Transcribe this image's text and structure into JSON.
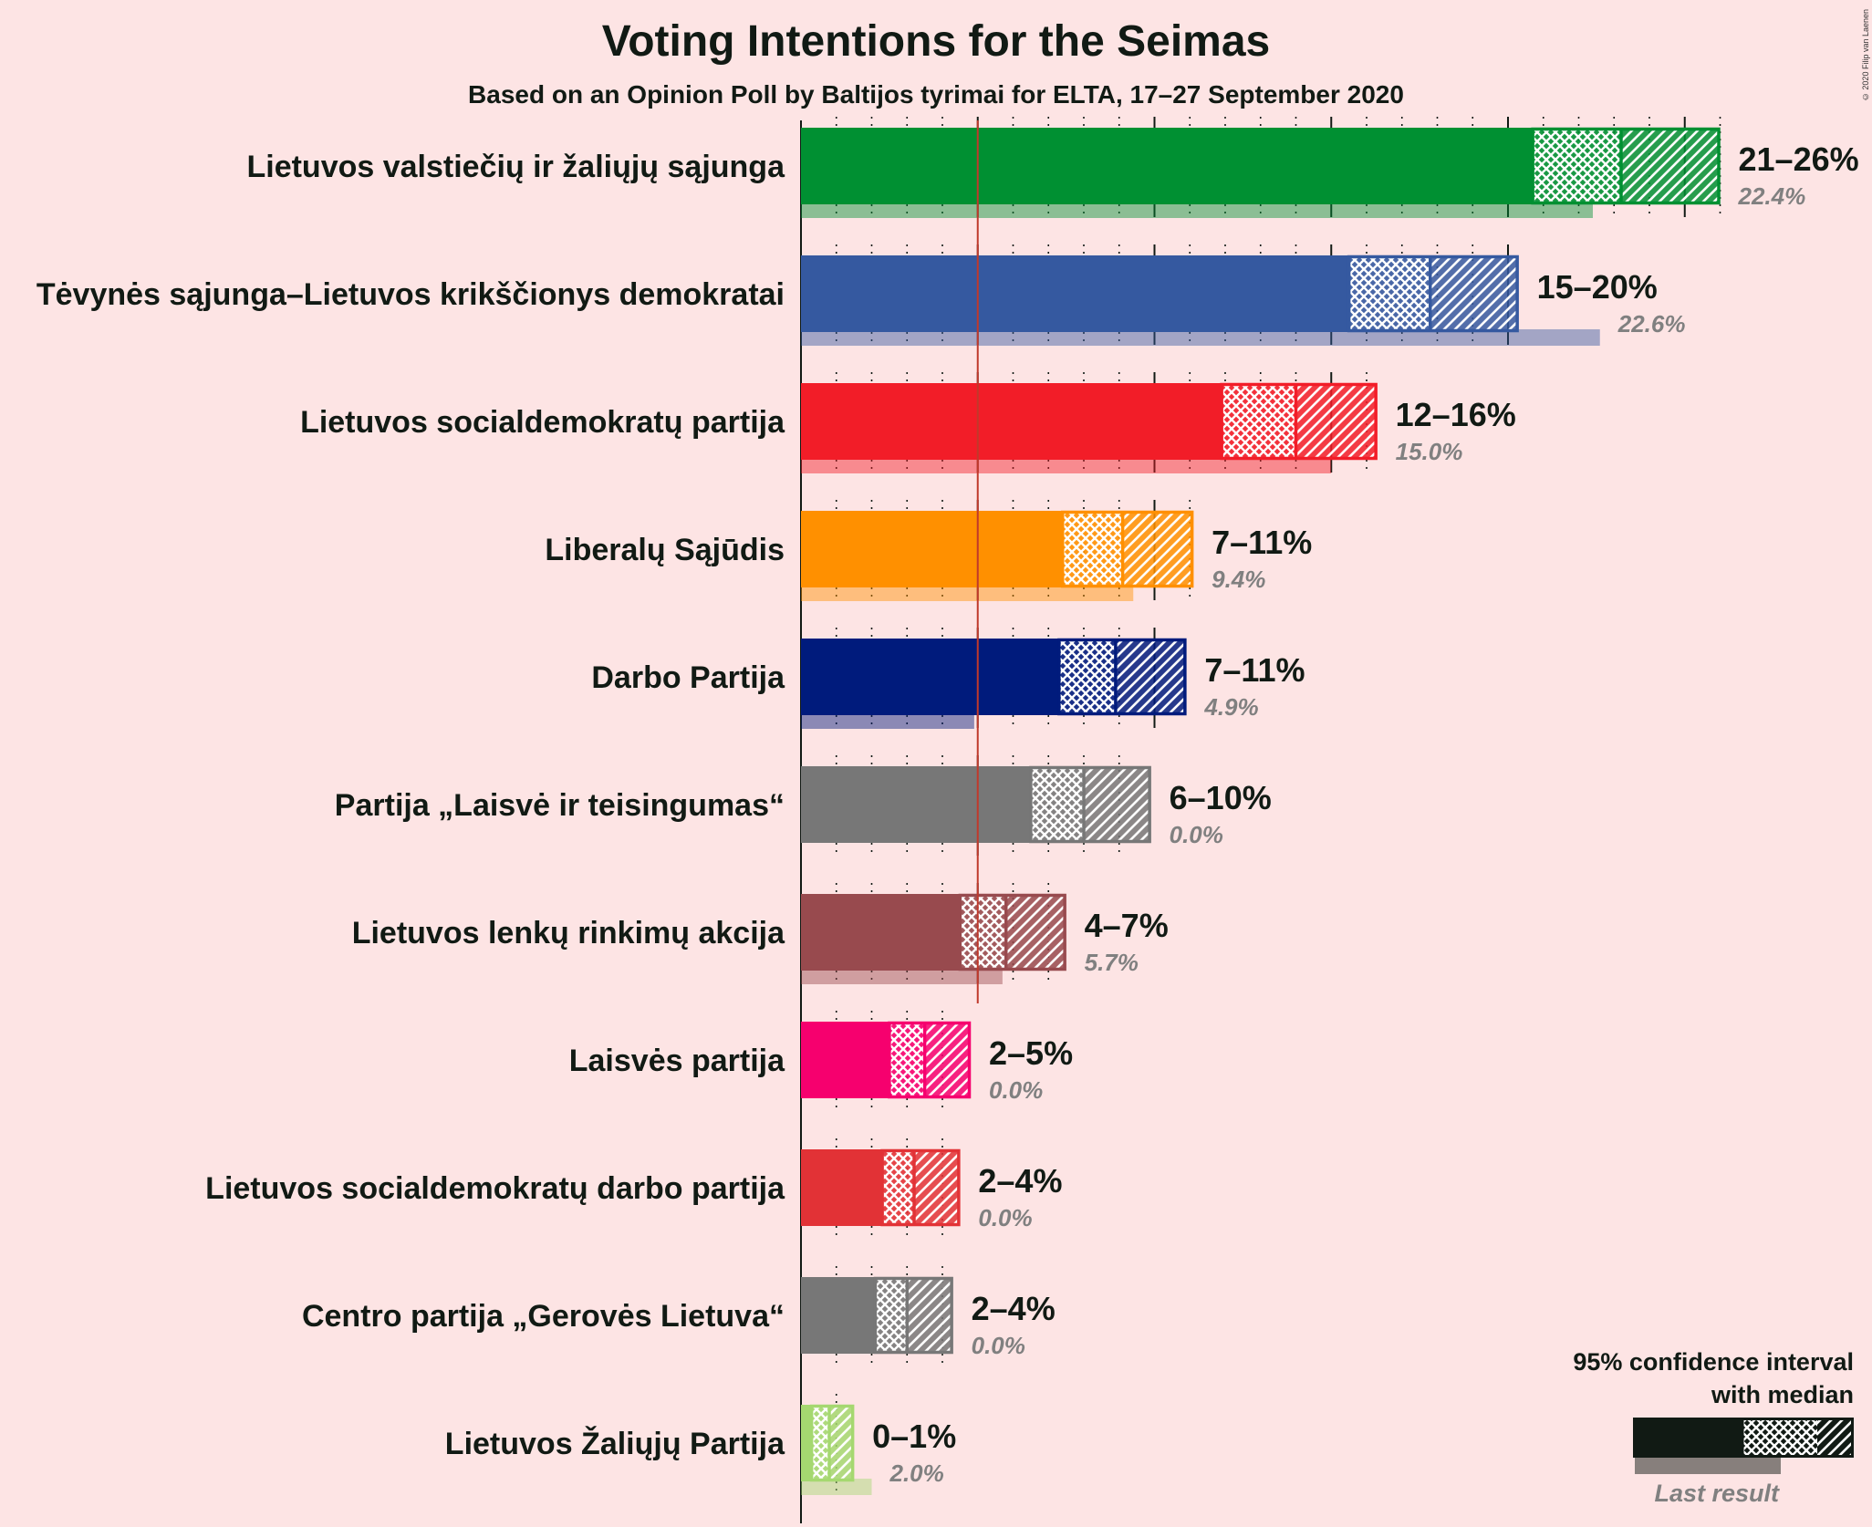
{
  "title": "Voting Intentions for the Seimas",
  "subtitle": "Based on an Opinion Poll by Baltijos tyrimai for ELTA, 17–27 September 2020",
  "copyright": "© 2020 Filip van Laenen",
  "legend": {
    "ci_label_line1": "95% confidence interval",
    "ci_label_line2": "with median",
    "last_result_label": "Last result"
  },
  "chart_data": {
    "type": "bar",
    "orientation": "horizontal",
    "xlim": [
      0,
      26
    ],
    "threshold": 5,
    "grid": "dotted every 1%, solid every 5%",
    "series": [
      {
        "party": "Lietuvos valstiečių ir žaliųjų sąjunga",
        "color": "#009032",
        "lo": 20.7,
        "median": 23.2,
        "hi": 26.0,
        "range_label": "21–26%",
        "last": 22.4,
        "last_label": "22.4%"
      },
      {
        "party": "Tėvynės sąjunga–Lietuvos krikščionys demokratai",
        "color": "#3559a0",
        "lo": 15.5,
        "median": 17.8,
        "hi": 20.3,
        "range_label": "15–20%",
        "last": 22.6,
        "last_label": "22.6%"
      },
      {
        "party": "Lietuvos socialdemokratų partija",
        "color": "#f21d28",
        "lo": 11.9,
        "median": 14.0,
        "hi": 16.3,
        "range_label": "12–16%",
        "last": 15.0,
        "last_label": "15.0%"
      },
      {
        "party": "Liberalų Sąjūdis",
        "color": "#ff9000",
        "lo": 7.4,
        "median": 9.1,
        "hi": 11.1,
        "range_label": "7–11%",
        "last": 9.4,
        "last_label": "9.4%"
      },
      {
        "party": "Darbo Partija",
        "color": "#001b7c",
        "lo": 7.3,
        "median": 8.9,
        "hi": 10.9,
        "range_label": "7–11%",
        "last": 4.9,
        "last_label": "4.9%"
      },
      {
        "party": "Partija „Laisvė ir teisingumas“",
        "color": "#777777",
        "lo": 6.5,
        "median": 8.0,
        "hi": 9.9,
        "range_label": "6–10%",
        "last": 0.0,
        "last_label": "0.0%"
      },
      {
        "party": "Lietuvos lenkų rinkimų akcija",
        "color": "#984a4e",
        "lo": 4.5,
        "median": 5.8,
        "hi": 7.5,
        "range_label": "4–7%",
        "last": 5.7,
        "last_label": "5.7%"
      },
      {
        "party": "Laisvės partija",
        "color": "#f6006e",
        "lo": 2.5,
        "median": 3.5,
        "hi": 4.8,
        "range_label": "2–5%",
        "last": 0.0,
        "last_label": "0.0%"
      },
      {
        "party": "Lietuvos socialdemokratų darbo partija",
        "color": "#e23236",
        "lo": 2.3,
        "median": 3.2,
        "hi": 4.5,
        "range_label": "2–4%",
        "last": 0.0,
        "last_label": "0.0%"
      },
      {
        "party": "Centro partija „Gerovės Lietuva“",
        "color": "#777777",
        "lo": 2.1,
        "median": 3.0,
        "hi": 4.3,
        "range_label": "2–4%",
        "last": 0.0,
        "last_label": "0.0%"
      },
      {
        "party": "Lietuvos Žaliųjų Partija",
        "color": "#a5d870",
        "lo": 0.3,
        "median": 0.8,
        "hi": 1.5,
        "range_label": "0–1%",
        "last": 2.0,
        "last_label": "2.0%"
      }
    ]
  }
}
